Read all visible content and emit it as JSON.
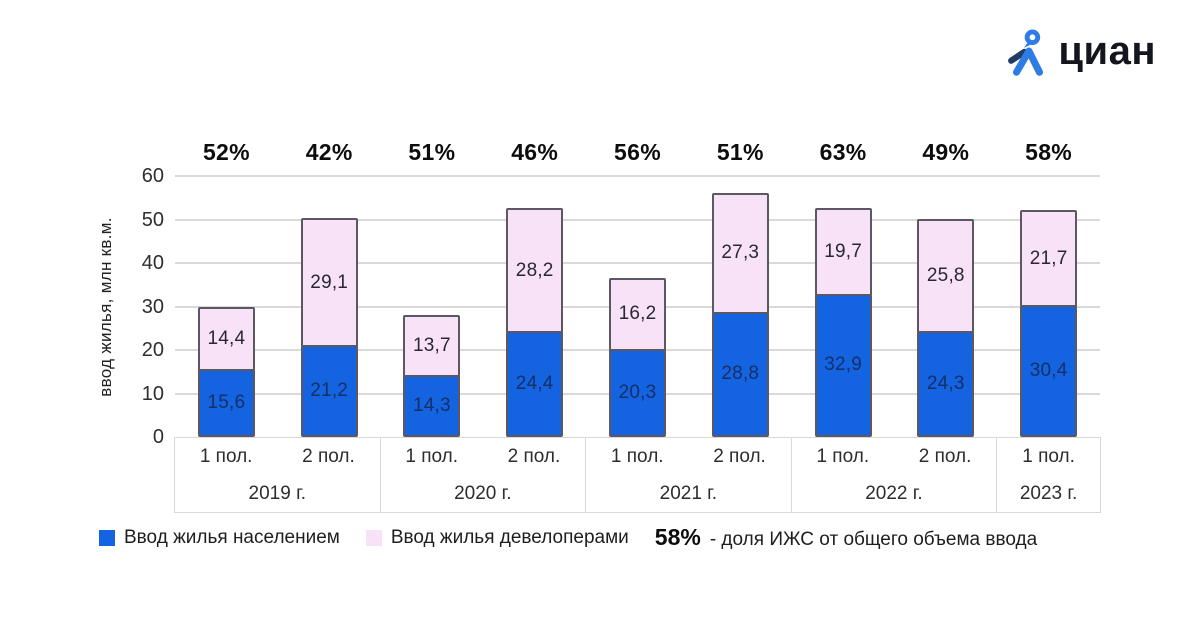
{
  "logo": {
    "text": "циан"
  },
  "chart_data": {
    "type": "bar",
    "stacked": true,
    "title": "",
    "ylabel": "ввод жилья, млн кв.м.",
    "ylim": [
      0,
      60
    ],
    "yticks": [
      0,
      10,
      20,
      30,
      40,
      50,
      60
    ],
    "grid": true,
    "legend_position": "bottom",
    "series": [
      {
        "name": "Ввод жилья населением",
        "key": "population",
        "color": "#1463e0"
      },
      {
        "name": "Ввод жилья девелоперами",
        "key": "developers",
        "color": "#f8e2f7"
      }
    ],
    "groups": [
      {
        "year": "2019 г.",
        "bars": [
          {
            "half": "1 пол.",
            "population": 15.6,
            "developers": 14.4,
            "share_pct": 52
          },
          {
            "half": "2 пол.",
            "population": 21.2,
            "developers": 29.1,
            "share_pct": 42
          }
        ]
      },
      {
        "year": "2020 г.",
        "bars": [
          {
            "half": "1 пол.",
            "population": 14.3,
            "developers": 13.7,
            "share_pct": 51
          },
          {
            "half": "2 пол.",
            "population": 24.4,
            "developers": 28.2,
            "share_pct": 46
          }
        ]
      },
      {
        "year": "2021 г.",
        "bars": [
          {
            "half": "1 пол.",
            "population": 20.3,
            "developers": 16.2,
            "share_pct": 56
          },
          {
            "half": "2 пол.",
            "population": 28.8,
            "developers": 27.3,
            "share_pct": 51
          }
        ]
      },
      {
        "year": "2022 г.",
        "bars": [
          {
            "half": "1 пол.",
            "population": 32.9,
            "developers": 19.7,
            "share_pct": 63
          },
          {
            "half": "2 пол.",
            "population": 24.3,
            "developers": 25.8,
            "share_pct": 49
          }
        ]
      },
      {
        "year": "2023 г.",
        "bars": [
          {
            "half": "1 пол.",
            "population": 30.4,
            "developers": 21.7,
            "share_pct": 58
          }
        ]
      }
    ]
  },
  "legend": {
    "note_value": "58%",
    "note_text": "- доля ИЖС от общего объема ввода"
  },
  "colors": {
    "population_fill": "#1463e0",
    "developers_fill": "#f8e2f7",
    "bar_border": "#5b5864",
    "grid": "#d9d9d9",
    "value_on_population": "#162f66",
    "value_on_developers": "#2a2734",
    "percent_label": "#0d0d0d",
    "logo_blue": "#2e7ce4",
    "logo_navy": "#1d3d63"
  }
}
